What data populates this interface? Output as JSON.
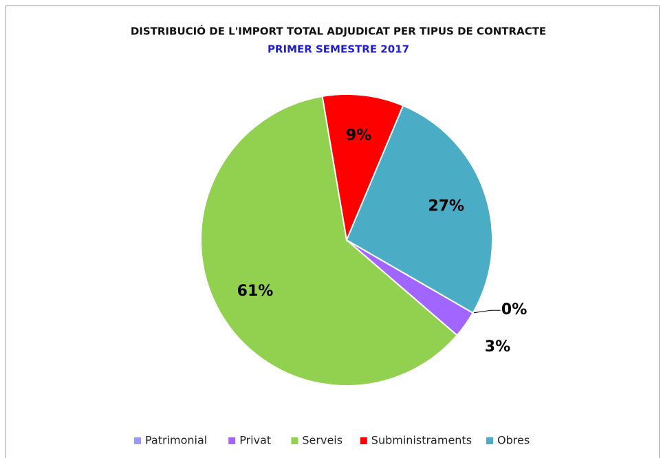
{
  "chart_data": {
    "type": "pie",
    "title": "DISTRIBUCIÓ DE L'IMPORT TOTAL ADJUDICAT PER TIPUS DE CONTRACTE",
    "subtitle": "PRIMER SEMESTRE 2017",
    "categories": [
      "Patrimonial",
      "Privat",
      "Serveis",
      "Subministraments",
      "Obres"
    ],
    "values": [
      0,
      3,
      61,
      9,
      27
    ],
    "value_labels": [
      "0%",
      "3%",
      "61%",
      "9%",
      "27%"
    ],
    "colors": [
      "#9999ff",
      "#a066ff",
      "#92d050",
      "#ff0000",
      "#4bacc6"
    ],
    "legend": "bottom"
  }
}
